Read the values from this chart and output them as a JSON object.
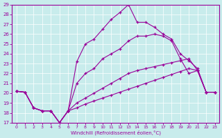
{
  "xlabel": "Windchill (Refroidissement éolien,°C)",
  "bg_color": "#c8ecec",
  "line_color": "#990099",
  "xlim": [
    -0.5,
    23.5
  ],
  "ylim": [
    17,
    29
  ],
  "xticks": [
    0,
    1,
    2,
    3,
    4,
    5,
    6,
    7,
    8,
    9,
    10,
    11,
    12,
    13,
    14,
    15,
    16,
    17,
    18,
    19,
    20,
    21,
    22,
    23
  ],
  "yticks": [
    17,
    18,
    19,
    20,
    21,
    22,
    23,
    24,
    25,
    26,
    27,
    28,
    29
  ],
  "lines": [
    {
      "x": [
        0,
        1,
        2,
        3,
        4,
        5,
        6,
        7,
        8,
        9,
        10,
        11,
        12,
        13,
        14,
        15,
        16,
        17,
        18,
        19,
        20,
        21,
        22,
        23
      ],
      "y": [
        20.2,
        20.1,
        18.5,
        18.2,
        18.2,
        17.0,
        18.2,
        23.2,
        25.0,
        25.5,
        26.5,
        27.5,
        28.2,
        29.0,
        27.2,
        27.2,
        26.7,
        26.0,
        25.5,
        24.0,
        23.3,
        22.5,
        20.1,
        20.1
      ]
    },
    {
      "x": [
        0,
        1,
        2,
        3,
        4,
        5,
        6,
        7,
        8,
        9,
        10,
        11,
        12,
        13,
        14,
        15,
        16,
        17,
        18,
        19,
        20,
        21,
        22,
        23
      ],
      "y": [
        20.2,
        20.1,
        18.5,
        18.2,
        18.2,
        17.0,
        18.2,
        21.0,
        22.0,
        22.5,
        23.5,
        24.0,
        24.5,
        25.3,
        25.8,
        25.8,
        26.0,
        25.8,
        25.3,
        23.5,
        22.0,
        22.3,
        20.1,
        20.1
      ]
    },
    {
      "x": [
        0,
        1,
        2,
        3,
        4,
        5,
        6,
        7,
        8,
        9,
        10,
        11,
        12,
        13,
        14,
        15,
        16,
        17,
        18,
        19,
        20,
        21,
        22,
        23
      ],
      "y": [
        20.2,
        20.1,
        18.5,
        18.2,
        18.2,
        17.0,
        18.2,
        19.0,
        19.5,
        20.0,
        20.5,
        21.0,
        21.5,
        22.0,
        22.3,
        22.5,
        22.7,
        22.9,
        23.1,
        23.3,
        23.5,
        22.3,
        20.1,
        20.1
      ]
    },
    {
      "x": [
        0,
        1,
        2,
        3,
        4,
        5,
        6,
        7,
        8,
        9,
        10,
        11,
        12,
        13,
        14,
        15,
        16,
        17,
        18,
        19,
        20,
        21,
        22,
        23
      ],
      "y": [
        20.2,
        20.1,
        18.5,
        18.2,
        18.2,
        17.0,
        18.2,
        18.5,
        18.9,
        19.2,
        19.5,
        19.8,
        20.1,
        20.4,
        20.7,
        21.0,
        21.3,
        21.6,
        21.9,
        22.2,
        22.5,
        22.3,
        20.1,
        20.1
      ]
    }
  ]
}
